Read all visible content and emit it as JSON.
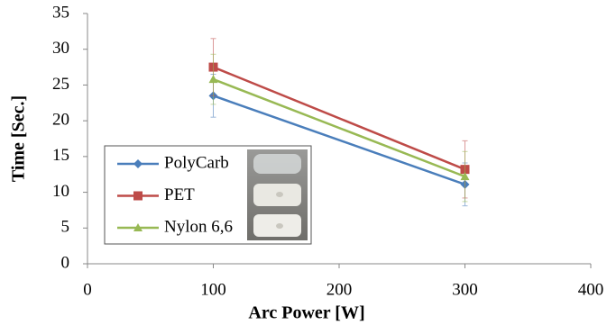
{
  "chart_data": {
    "type": "line",
    "x_label": "Arc Power [W]",
    "y_label": "Time [Sec.]",
    "x": [
      100,
      300
    ],
    "series": [
      {
        "name": "PolyCarb",
        "color": "#4a7ebb",
        "marker": "diamond",
        "values": [
          23.5,
          11.1
        ],
        "errors": [
          3,
          3
        ]
      },
      {
        "name": "PET",
        "color": "#be4b48",
        "marker": "square",
        "values": [
          27.5,
          13.2
        ],
        "errors": [
          4,
          4
        ]
      },
      {
        "name": "Nylon 6,6",
        "color": "#98b954",
        "marker": "triangle",
        "values": [
          25.8,
          12.2
        ],
        "errors": [
          3.5,
          3.5
        ]
      }
    ],
    "xlim": [
      0,
      400
    ],
    "xticks": [
      0,
      100,
      200,
      300,
      400
    ],
    "ylim": [
      0,
      35
    ],
    "yticks": [
      0,
      5,
      10,
      15,
      20,
      25,
      30,
      35
    ],
    "grid": false
  }
}
